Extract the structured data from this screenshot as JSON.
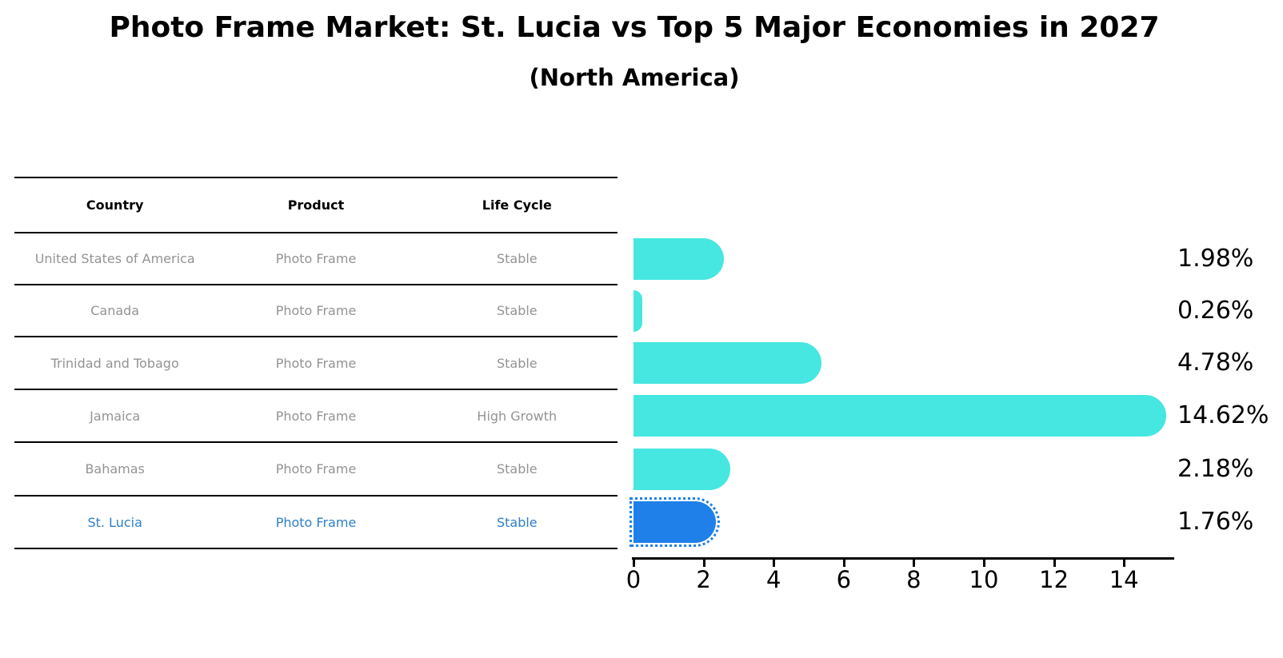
{
  "title": "Photo Frame Market: St. Lucia vs Top 5 Major Economies in 2027",
  "subtitle": "(North America)",
  "table": {
    "headers": [
      "Country",
      "Product",
      "Life Cycle"
    ]
  },
  "rows": [
    {
      "country": "United States of America",
      "product": "Photo Frame",
      "life_cycle": "Stable",
      "value": 1.98,
      "value_label": "1.98%",
      "highlight": false
    },
    {
      "country": "Canada",
      "product": "Photo Frame",
      "life_cycle": "Stable",
      "value": 0.26,
      "value_label": "0.26%",
      "highlight": false
    },
    {
      "country": "Trinidad and Tobago",
      "product": "Photo Frame",
      "life_cycle": "Stable",
      "value": 4.78,
      "value_label": "4.78%",
      "highlight": false
    },
    {
      "country": "Jamaica",
      "product": "Photo Frame",
      "life_cycle": "High Growth",
      "value": 14.62,
      "value_label": "14.62%",
      "highlight": false
    },
    {
      "country": "Bahamas",
      "product": "Photo Frame",
      "life_cycle": "Stable",
      "value": 2.18,
      "value_label": "2.18%",
      "highlight": false
    },
    {
      "country": "St. Lucia",
      "product": "Photo Frame",
      "life_cycle": "Stable",
      "value": 1.76,
      "value_label": "1.76%",
      "highlight": true
    }
  ],
  "chart_data": {
    "type": "bar",
    "orientation": "horizontal",
    "title": "Photo Frame Market: St. Lucia vs Top 5 Major Economies in 2027",
    "subtitle": "(North America)",
    "categories": [
      "United States of America",
      "Canada",
      "Trinidad and Tobago",
      "Jamaica",
      "Bahamas",
      "St. Lucia"
    ],
    "values": [
      1.98,
      0.26,
      4.78,
      14.62,
      2.18,
      1.76
    ],
    "value_labels": [
      "1.98%",
      "0.26%",
      "4.78%",
      "14.62%",
      "2.18%",
      "1.76%"
    ],
    "xlabel": "",
    "ylabel": "",
    "xlim": [
      0,
      15.4
    ],
    "x_ticks": [
      0,
      2,
      4,
      6,
      8,
      10,
      12,
      14
    ],
    "grid": false,
    "legend": false,
    "bar_color": "#45e7e0",
    "highlight_bar_color": "#1e80e8",
    "highlight_bar_style": "dotted-outline",
    "highlight_text_color": "#2e80c8",
    "highlight_index": 5
  }
}
